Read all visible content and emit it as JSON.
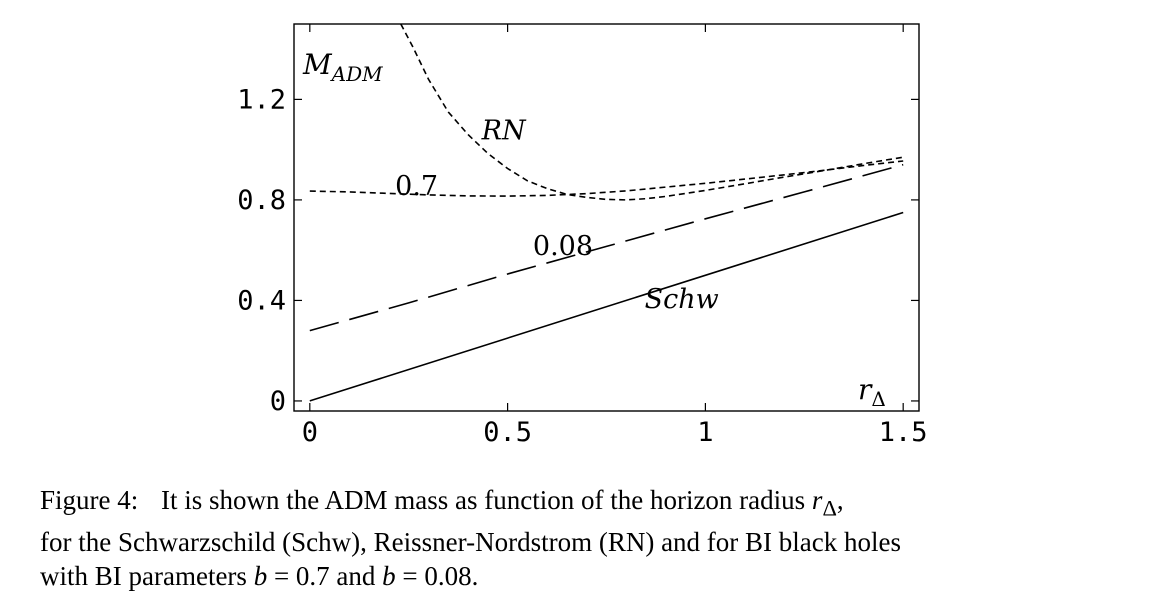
{
  "chart_data": {
    "type": "line",
    "title": "",
    "xlabel": "r",
    "xlabel_sub": "Δ",
    "ylabel": "M",
    "ylabel_sub": "ADM",
    "xlim": [
      -0.04,
      1.54
    ],
    "ylim": [
      -0.04,
      1.5
    ],
    "x_ticks": [
      0,
      0.5,
      1,
      1.5
    ],
    "x_tick_labels": [
      "0",
      "0.5",
      "1",
      "1.5"
    ],
    "y_ticks": [
      0,
      0.4,
      0.8,
      1.2
    ],
    "y_tick_labels": [
      "0",
      "0.4",
      "0.8",
      "1.2"
    ],
    "grid": false,
    "series": [
      {
        "name": "Schw",
        "style": "solid",
        "x": [
          0,
          1.5
        ],
        "y": [
          0,
          0.75
        ]
      },
      {
        "name": "0.08",
        "style": "long-dash",
        "x": [
          0,
          0.25,
          0.5,
          0.75,
          1.0,
          1.25,
          1.5
        ],
        "y": [
          0.28,
          0.39,
          0.505,
          0.615,
          0.725,
          0.832,
          0.94
        ]
      },
      {
        "name": "0.7",
        "style": "short-dash",
        "x": [
          0,
          0.1,
          0.2,
          0.3,
          0.4,
          0.5,
          0.6,
          0.7,
          0.8,
          0.9,
          1.0,
          1.1,
          1.2,
          1.3,
          1.4,
          1.5
        ],
        "y": [
          0.835,
          0.832,
          0.826,
          0.82,
          0.816,
          0.815,
          0.818,
          0.825,
          0.836,
          0.851,
          0.866,
          0.883,
          0.9,
          0.918,
          0.937,
          0.955
        ]
      },
      {
        "name": "RN",
        "style": "short-dash",
        "x": [
          0.23,
          0.26,
          0.3,
          0.35,
          0.4,
          0.45,
          0.5,
          0.55,
          0.6,
          0.65,
          0.7,
          0.75,
          0.8,
          0.85,
          0.9,
          1.0,
          1.1,
          1.2,
          1.3,
          1.4,
          1.5
        ],
        "y": [
          1.5,
          1.41,
          1.28,
          1.15,
          1.06,
          0.985,
          0.925,
          0.876,
          0.845,
          0.822,
          0.81,
          0.802,
          0.8,
          0.805,
          0.814,
          0.838,
          0.864,
          0.891,
          0.917,
          0.944,
          0.97
        ]
      }
    ],
    "annotations": [
      {
        "text": "RN",
        "x": 0.49,
        "y": 1.04,
        "italic": true
      },
      {
        "text": "0.7",
        "x": 0.27,
        "y": 0.82,
        "italic": false
      },
      {
        "text": "0.08",
        "x": 0.64,
        "y": 0.58,
        "italic": false
      },
      {
        "text": "Schw",
        "x": 0.94,
        "y": 0.37,
        "italic": true
      }
    ]
  },
  "caption": {
    "label": "Figure 4:",
    "line1": "It is shown the ADM mass as function of the horizon radius",
    "var_main": "r",
    "var_sub": "Δ",
    "line1_end": ",",
    "line2": "for the Schwarzschild (Schw), Reissner-Nordstrom (RN) and for BI black holes",
    "line3_start": "with BI parameters",
    "eq1_var": "b",
    "eq1_rest": " = 0.7 and ",
    "eq2_var": "b",
    "eq2_rest": " = 0.08."
  }
}
